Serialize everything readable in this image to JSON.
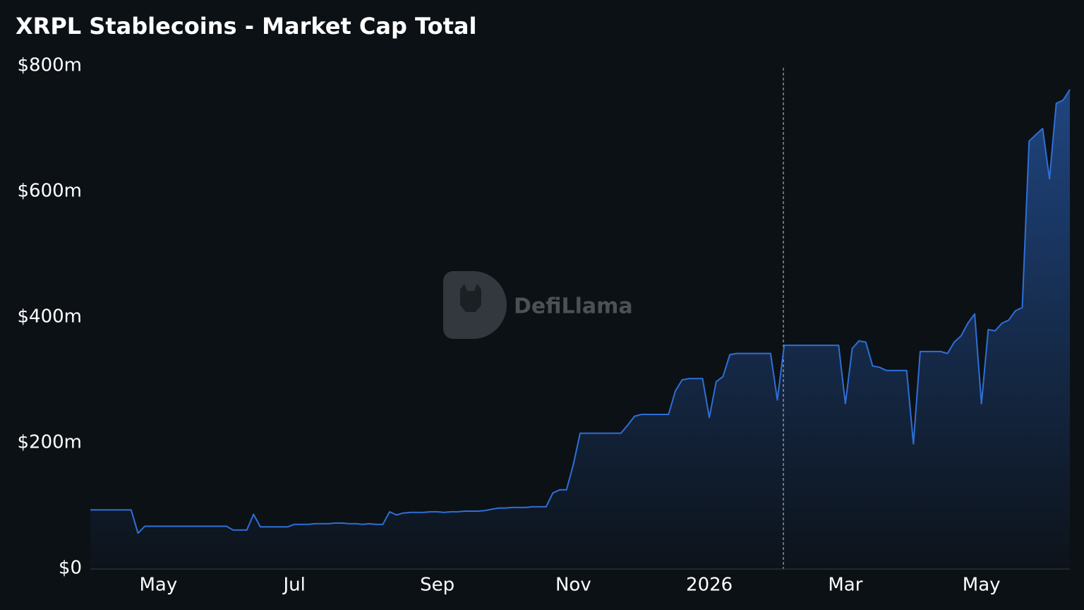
{
  "chart_data": {
    "type": "line",
    "title": "XRPL Stablecoins - Market Cap Total",
    "watermark": "DefiLlama",
    "categories": [
      null,
      null,
      null,
      null,
      null,
      null,
      null,
      null,
      null,
      null,
      "May",
      null,
      null,
      null,
      null,
      null,
      null,
      null,
      null,
      null,
      null,
      null,
      null,
      null,
      null,
      null,
      null,
      null,
      null,
      null,
      "Jul",
      null,
      null,
      null,
      null,
      null,
      null,
      null,
      null,
      null,
      null,
      null,
      null,
      null,
      null,
      null,
      null,
      null,
      null,
      null,
      null,
      "Sep",
      null,
      null,
      null,
      null,
      null,
      null,
      null,
      null,
      null,
      null,
      null,
      null,
      null,
      null,
      null,
      null,
      null,
      null,
      null,
      "Nov",
      null,
      null,
      null,
      null,
      null,
      null,
      null,
      null,
      null,
      null,
      null,
      null,
      null,
      null,
      null,
      null,
      null,
      null,
      null,
      "2026",
      null,
      null,
      null,
      null,
      null,
      null,
      null,
      null,
      null,
      null,
      null,
      null,
      null,
      null,
      null,
      null,
      null,
      null,
      null,
      "Mar",
      null,
      null,
      null,
      null,
      null,
      null,
      null,
      null,
      null,
      null,
      null,
      null,
      null,
      null,
      null,
      null,
      null,
      null,
      null,
      "May",
      null,
      null,
      null,
      null,
      null,
      null,
      null,
      null,
      null,
      null,
      null,
      null,
      null
    ],
    "values": [
      93,
      93,
      93,
      93,
      93,
      93,
      93,
      56,
      67,
      67,
      67,
      67,
      67,
      67,
      67,
      67,
      67,
      67,
      67,
      67,
      67,
      61,
      61,
      61,
      86,
      66,
      66,
      66,
      66,
      66,
      70,
      70,
      70,
      71,
      71,
      71,
      72,
      72,
      71,
      71,
      70,
      71,
      70,
      70,
      90,
      85,
      88,
      89,
      89,
      89,
      90,
      90,
      89,
      90,
      90,
      91,
      91,
      91,
      92,
      94,
      96,
      96,
      97,
      97,
      97,
      98,
      98,
      98,
      120,
      125,
      125,
      165,
      215,
      215,
      215,
      215,
      215,
      215,
      215,
      228,
      242,
      245,
      245,
      245,
      245,
      245,
      282,
      300,
      302,
      302,
      302,
      240,
      297,
      305,
      340,
      342,
      342,
      342,
      342,
      342,
      342,
      268,
      355,
      355,
      355,
      355,
      355,
      355,
      355,
      355,
      355,
      262,
      350,
      362,
      360,
      322,
      320,
      315,
      315,
      315,
      315,
      198,
      345,
      345,
      345,
      345,
      342,
      360,
      370,
      390,
      405,
      262,
      380,
      378,
      390,
      395,
      410,
      415,
      680,
      690,
      700,
      620,
      740,
      745,
      762
    ],
    "color": "#2f6fd6",
    "ylim": [
      0,
      800
    ],
    "yticks": [
      {
        "value": 0,
        "label": "$0"
      },
      {
        "value": 200,
        "label": "$200m"
      },
      {
        "value": 400,
        "label": "$400m"
      },
      {
        "value": 600,
        "label": "$600m"
      },
      {
        "value": 800,
        "label": "$800m"
      }
    ]
  }
}
